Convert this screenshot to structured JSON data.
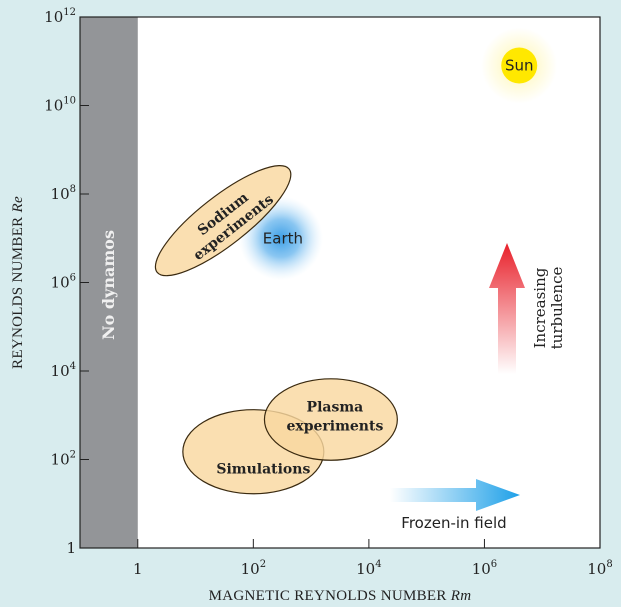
{
  "chart_data": {
    "type": "scatter",
    "xlabel_main": "MAGNETIC REYNOLDS NUMBER ",
    "xlabel_var": "Rm",
    "ylabel_main": "REYNOLDS NUMBER ",
    "ylabel_var": "Re",
    "xscale": "log",
    "yscale": "log",
    "xlim": [
      0.1,
      100000000
    ],
    "ylim": [
      1,
      1000000000000
    ],
    "x_ticks": [
      {
        "value": 1,
        "base": "1",
        "exp": ""
      },
      {
        "value": 100,
        "base": "10",
        "exp": "2"
      },
      {
        "value": 10000,
        "base": "10",
        "exp": "4"
      },
      {
        "value": 1000000,
        "base": "10",
        "exp": "6"
      },
      {
        "value": 100000000,
        "base": "10",
        "exp": "8"
      }
    ],
    "y_ticks": [
      {
        "value": 1,
        "base": "1",
        "exp": ""
      },
      {
        "value": 100,
        "base": "10",
        "exp": "2"
      },
      {
        "value": 10000,
        "base": "10",
        "exp": "4"
      },
      {
        "value": 1000000,
        "base": "10",
        "exp": "6"
      },
      {
        "value": 100000000,
        "base": "10",
        "exp": "8"
      },
      {
        "value": 10000000000,
        "base": "10",
        "exp": "10"
      },
      {
        "value": 1000000000000,
        "base": "10",
        "exp": "12"
      }
    ],
    "no_dynamo_region": {
      "x_max": 1,
      "label": "No dynamos",
      "color": "#939598"
    },
    "points": [
      {
        "name": "Sun",
        "x": 4000000,
        "y": 80000000000,
        "color": "#ffe800",
        "glow": "#fff6b0"
      },
      {
        "name": "Earth",
        "x": 300,
        "y": 10000000,
        "color": "#4fa8e8",
        "glow": "#bfe2fb"
      }
    ],
    "regions": [
      {
        "name": "Simulations",
        "label": "Simulations",
        "cx": 100,
        "cy": 150,
        "rx_dec": 1.22,
        "ry_dec": 0.95,
        "rot": 0
      },
      {
        "name": "Plasma experiments",
        "label_lines": [
          "Plasma",
          "experiments"
        ],
        "cx": 2200,
        "cy": 800,
        "rx_dec": 1.15,
        "ry_dec": 0.92,
        "rot": 0
      },
      {
        "name": "Sodium experiments",
        "label_lines": [
          "Sodium",
          "experiments"
        ],
        "cx": 30,
        "cy": 25000000,
        "rx_dec": 1.45,
        "ry_dec": 0.55,
        "rot": -38
      }
    ],
    "region_fill": "#f9d8a0",
    "region_stroke": "#3a2a10",
    "annotations": {
      "turbulence_lines": [
        "Increasing",
        "turbulence"
      ],
      "frozen_in": "Frozen-in field"
    },
    "grid": false
  }
}
